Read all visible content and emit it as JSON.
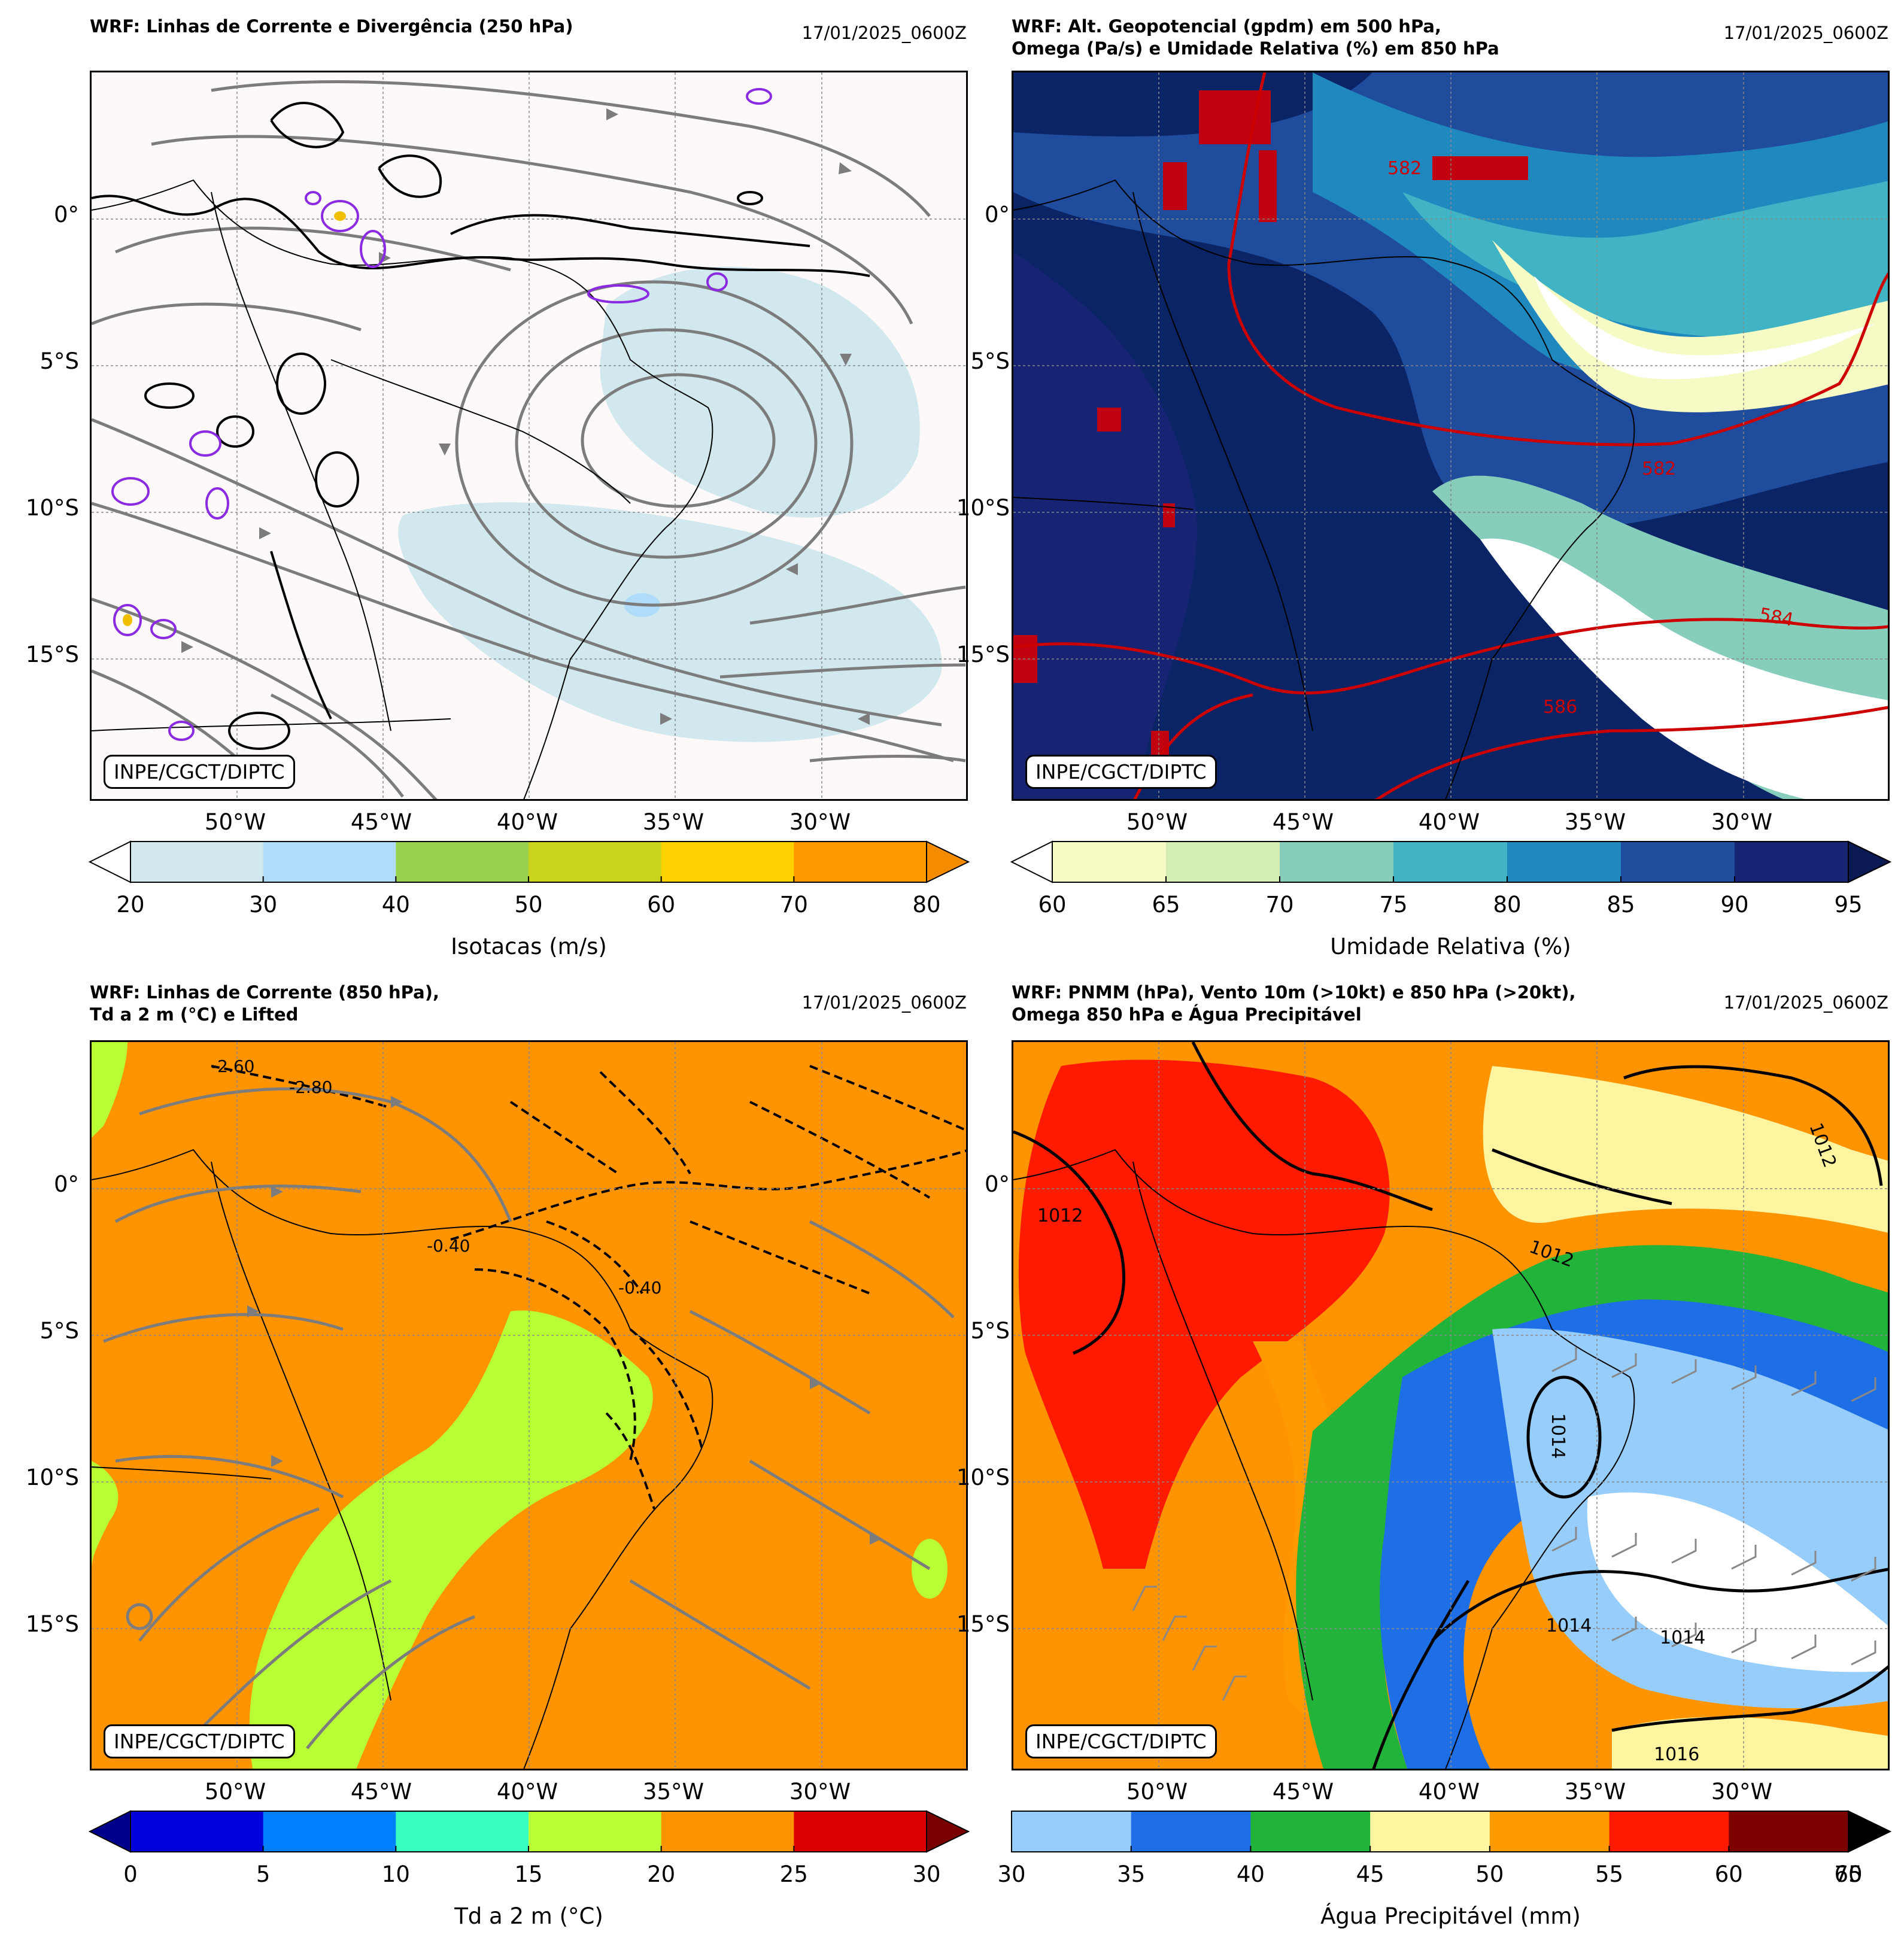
{
  "panels": [
    {
      "title": "WRF: Linhas de Corrente e Divergência (250 hPa)",
      "date": "17/01/2025_0600Z",
      "credit": "INPE/CGCT/DIPTC",
      "colorbar": {
        "label": "Isotacas (m/s)",
        "ticks": [
          "20",
          "30",
          "40",
          "50",
          "60",
          "70",
          "80"
        ],
        "colors": [
          "#d1e8ef",
          "#b0dcfa",
          "#99d14e",
          "#c9d21d",
          "#ffd200",
          "#ff9a00"
        ],
        "under": "#ffffff",
        "over": "#f58c00"
      },
      "background": "#fcf9f8"
    },
    {
      "title": "WRF: Alt. Geopotencial (gpdm) em 500 hPa,\nOmega (Pa/s) e Umidade Relativa (%) em 850 hPa",
      "date": "17/01/2025_0600Z",
      "credit": "INPE/CGCT/DIPTC",
      "colorbar": {
        "label": "Umidade Relativa (%)",
        "ticks": [
          "60",
          "65",
          "70",
          "75",
          "80",
          "85",
          "90",
          "95"
        ],
        "colors": [
          "#f6fbc6",
          "#d3edb3",
          "#87cdbb",
          "#40b4c4",
          "#1f88be",
          "#1f4c9c",
          "#162473"
        ],
        "under": "#ffffff",
        "over": "#0b1a52"
      },
      "contour_labels": [
        "582",
        "582",
        "584",
        "586"
      ],
      "background": "#0b2466"
    },
    {
      "title": "WRF: Linhas de Corrente (850 hPa),\nTd a 2 m (°C) e Lifted",
      "date": "17/01/2025_0600Z",
      "credit": "INPE/CGCT/DIPTC",
      "colorbar": {
        "label": "Td a 2 m (°C)",
        "ticks": [
          "0",
          "5",
          "10",
          "15",
          "20",
          "25",
          "30"
        ],
        "colors": [
          "#0000dc",
          "#0080ff",
          "#36ffc0",
          "#b9ff36",
          "#ff9400",
          "#dc0000"
        ],
        "under": "#00008c",
        "over": "#780000"
      },
      "contour_labels": [
        "-2.60",
        "-2.80",
        "-0.40",
        "-0.40"
      ],
      "background": "#ff9400"
    },
    {
      "title": "WRF: PNMM (hPa), Vento 10m (>10kt) e 850 hPa (>20kt),\nOmega 850 hPa e Água Precipitável",
      "date": "17/01/2025_0600Z",
      "credit": "INPE/CGCT/DIPTC",
      "colorbar": {
        "label": "Água Precipitável (mm)",
        "ticks": [
          "30",
          "35",
          "40",
          "45",
          "50",
          "55",
          "60",
          "65",
          "70"
        ],
        "colors": [
          "#96cdfa",
          "#1e6ee6",
          "#22b43a",
          "#fff5a0",
          "#ff9a00",
          "#ff1a00",
          "#7d0000"
        ],
        "under": null,
        "over": "#000000"
      },
      "contour_labels": [
        "1012",
        "1012",
        "1014",
        "1014",
        "1014",
        "1016",
        "1012"
      ],
      "background": "#ff9400"
    }
  ],
  "lat_labels": [
    "0°",
    "5°S",
    "10°S",
    "15°S"
  ],
  "lon_labels": [
    "50°W",
    "45°W",
    "40°W",
    "35°W",
    "30°W"
  ]
}
